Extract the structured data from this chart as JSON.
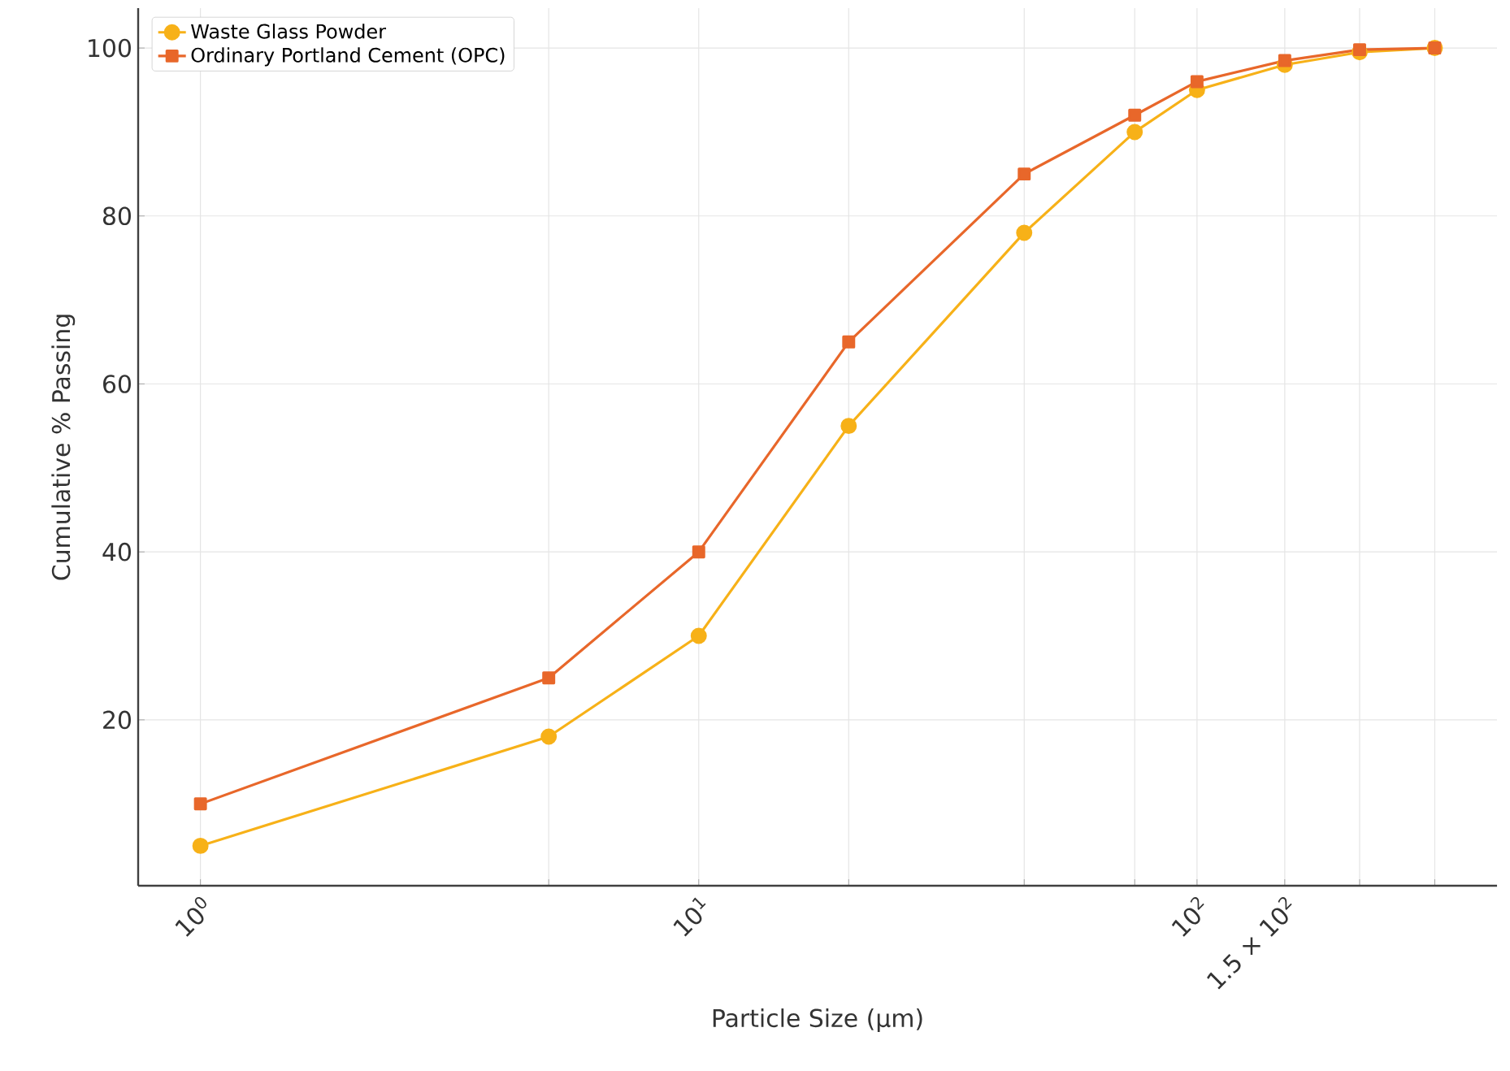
{
  "chart_data": {
    "type": "line",
    "xlabel": "Particle Size (µm)",
    "ylabel": "Cumulative % Passing",
    "log": "x",
    "xlim": [
      0.75,
      400
    ],
    "ylim": [
      0.25,
      104.75
    ],
    "xticks": [
      {
        "value": 1,
        "label": "10$^{0}$"
      },
      {
        "value": 5,
        "label": null
      },
      {
        "value": 10,
        "label": "10$^{1}$"
      },
      {
        "value": 20,
        "label": null
      },
      {
        "value": 45,
        "label": null
      },
      {
        "value": 75,
        "label": null
      },
      {
        "value": 100,
        "label": "10$^{2}$"
      },
      {
        "value": 150,
        "label": "1.5 × 10$^{2}$"
      },
      {
        "value": 212,
        "label": null
      },
      {
        "value": 300,
        "label": null
      }
    ],
    "yticks": [
      20,
      40,
      60,
      80,
      100
    ],
    "grid": true,
    "legend": "top left",
    "line_style": "solid",
    "x": [
      1,
      5,
      10,
      20,
      45,
      75,
      100,
      150,
      212,
      300
    ],
    "series": [
      {
        "name": "Waste Glass Powder",
        "color": "#f7b118",
        "marker": "circle",
        "values": [
          5,
          18,
          30,
          55,
          78,
          90,
          95,
          98,
          99.5,
          100
        ]
      },
      {
        "name": "Ordinary Portland Cement (OPC)",
        "color": "#e8672a",
        "marker": "square",
        "values": [
          10,
          25,
          40,
          65,
          85,
          92,
          96,
          98.5,
          99.8,
          100
        ]
      }
    ]
  }
}
